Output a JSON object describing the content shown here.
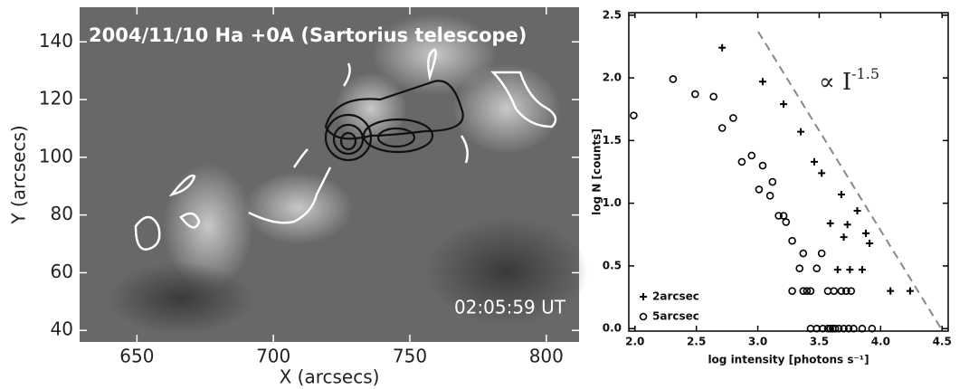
{
  "chart_data": [
    {
      "type": "image",
      "title": "2004/11/10 Ha +0A (Sartorius telescope)",
      "annotation": "02:05:59 UT",
      "x_label": "X (arcsecs)",
      "y_label": "Y (arcsecs)",
      "xlim": [
        629,
        812
      ],
      "xticks": [
        650,
        700,
        750,
        800
      ],
      "ylim": [
        36,
        152
      ],
      "yticks": [
        40,
        60,
        80,
        100,
        120,
        140
      ]
    },
    {
      "type": "scatter",
      "x_label": "log intensity [photons s⁻¹]",
      "y_label": "log N [counts]",
      "annotation": "∝ I",
      "annotation_superscript": "-1.5",
      "xlim": [
        1.95,
        4.55
      ],
      "xticks": [
        {
          "value": 2,
          "label": "2.0"
        },
        2.5,
        {
          "value": 3,
          "label": "3.0"
        },
        3.5,
        {
          "value": 4,
          "label": "4.0"
        },
        4.5
      ],
      "ylim": [
        -0.02,
        2.52
      ],
      "yticks": [
        {
          "value": 0,
          "label": "0.0"
        },
        0.5,
        {
          "value": 1,
          "label": "1.0"
        },
        1.5,
        {
          "value": 2,
          "label": "2.0"
        },
        2.5
      ],
      "legend": "lower left",
      "series": [
        {
          "name": "2arcsec",
          "marker": "+",
          "color": "#000000",
          "x": [
            2.71,
            3.04,
            3.21,
            3.35,
            3.46,
            3.52,
            3.68,
            3.81,
            3.59,
            3.73,
            3.88,
            3.7,
            3.91,
            3.65,
            3.75,
            3.85,
            4.08,
            4.24
          ],
          "values": [
            2.24,
            1.97,
            1.79,
            1.57,
            1.33,
            1.24,
            1.07,
            0.94,
            0.84,
            0.83,
            0.76,
            0.73,
            0.68,
            0.47,
            0.47,
            0.47,
            0.3,
            0.3
          ]
        },
        {
          "name": "5arcsec",
          "marker": "o",
          "color": "#000000",
          "x": [
            1.99,
            2.31,
            2.49,
            2.64,
            2.71,
            2.8,
            2.87,
            2.95,
            3.04,
            3.01,
            3.12,
            3.1,
            3.17,
            3.21,
            3.23,
            3.28,
            3.37,
            3.34,
            3.48,
            3.52,
            3.28,
            3.37,
            3.4,
            3.43,
            3.57,
            3.62,
            3.68,
            3.72,
            3.76,
            3.43,
            3.48,
            3.53,
            3.57,
            3.59,
            3.61,
            3.63,
            3.66,
            3.7,
            3.74,
            3.78,
            3.85,
            3.93
          ],
          "values": [
            1.7,
            1.99,
            1.87,
            1.85,
            1.6,
            1.68,
            1.33,
            1.38,
            1.3,
            1.11,
            1.17,
            1.06,
            0.9,
            0.9,
            0.85,
            0.7,
            0.6,
            0.48,
            0.48,
            0.6,
            0.3,
            0.3,
            0.3,
            0.3,
            0.3,
            0.3,
            0.3,
            0.3,
            0.3,
            0,
            0,
            0,
            0,
            0,
            0,
            0,
            0,
            0,
            0,
            0,
            0,
            0
          ]
        }
      ]
    }
  ]
}
